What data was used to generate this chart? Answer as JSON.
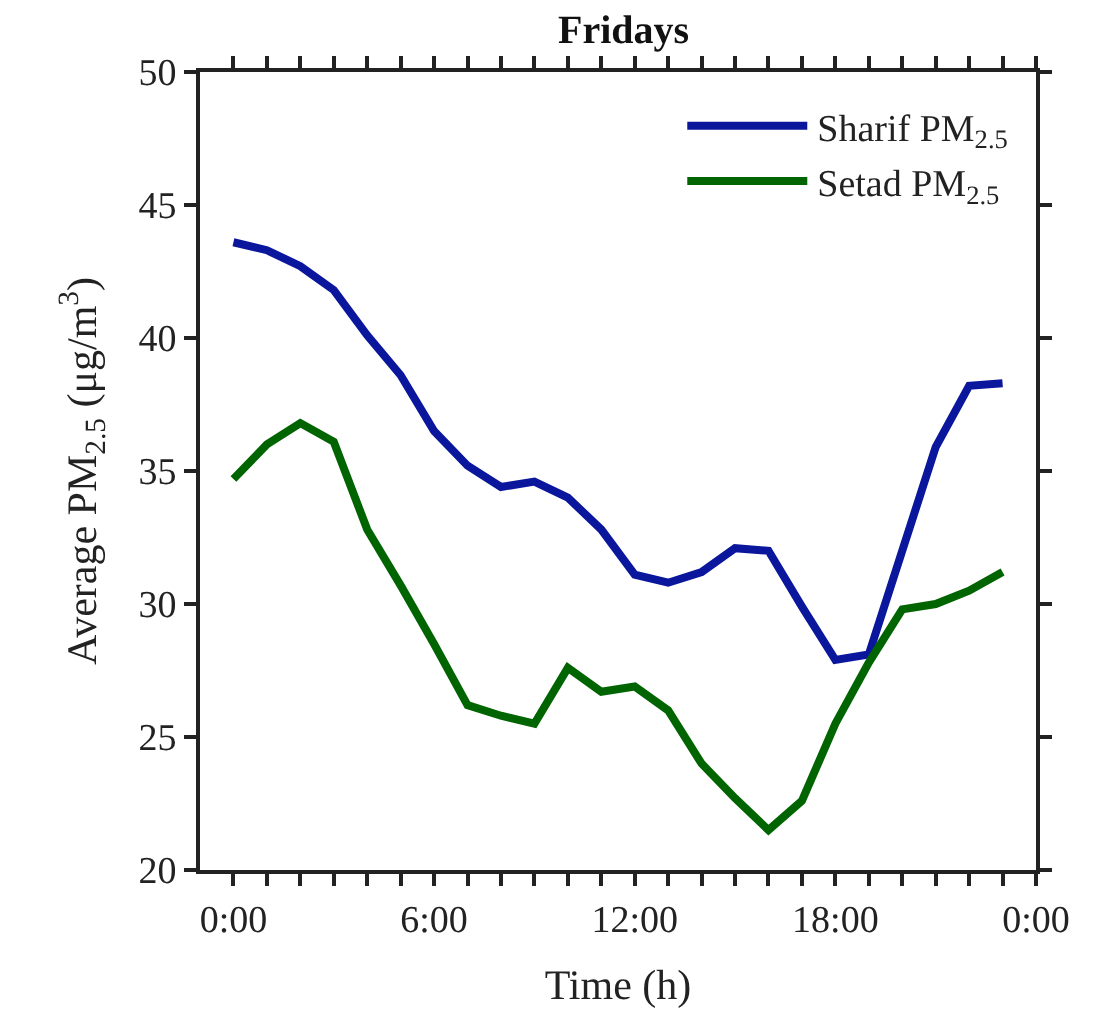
{
  "chart_data": {
    "type": "line",
    "title": "Fridays",
    "xlabel": "Time (h)",
    "ylabel": "Average PM$_{2.5}$ (μg/m$^{3}$)",
    "x": [
      0,
      1,
      2,
      3,
      4,
      5,
      6,
      7,
      8,
      9,
      10,
      11,
      12,
      13,
      14,
      15,
      16,
      17,
      18,
      19,
      20,
      21,
      22,
      23
    ],
    "series": [
      {
        "name": "Sharif PM$_{2.5}$",
        "color": "#0a169c",
        "values": [
          43.6,
          43.3,
          42.7,
          41.8,
          40.1,
          38.6,
          36.5,
          35.2,
          34.4,
          34.6,
          34.0,
          32.8,
          31.1,
          30.8,
          31.2,
          32.1,
          32.0,
          29.9,
          27.9,
          28.1,
          32.0,
          35.9,
          38.2,
          38.3
        ]
      },
      {
        "name": "Setad PM$_{2.5}$",
        "color": "#006400",
        "values": [
          34.7,
          36.0,
          36.8,
          36.1,
          32.8,
          30.7,
          28.5,
          26.2,
          25.8,
          25.5,
          27.6,
          26.7,
          26.9,
          26.0,
          24.0,
          22.7,
          21.5,
          22.6,
          25.5,
          27.8,
          29.8,
          30.0,
          30.5,
          31.2
        ]
      }
    ],
    "xlim": [
      -1,
      24
    ],
    "xticks": [
      {
        "value": 0,
        "label": "0:00"
      },
      {
        "value": 1,
        "label": null
      },
      {
        "value": 2,
        "label": null
      },
      {
        "value": 3,
        "label": null
      },
      {
        "value": 4,
        "label": null
      },
      {
        "value": 5,
        "label": null
      },
      {
        "value": 6,
        "label": "6:00"
      },
      {
        "value": 7,
        "label": null
      },
      {
        "value": 8,
        "label": null
      },
      {
        "value": 9,
        "label": null
      },
      {
        "value": 10,
        "label": null
      },
      {
        "value": 11,
        "label": null
      },
      {
        "value": 12,
        "label": "12:00"
      },
      {
        "value": 13,
        "label": null
      },
      {
        "value": 14,
        "label": null
      },
      {
        "value": 15,
        "label": null
      },
      {
        "value": 16,
        "label": null
      },
      {
        "value": 17,
        "label": null
      },
      {
        "value": 18,
        "label": "18:00"
      },
      {
        "value": 19,
        "label": null
      },
      {
        "value": 20,
        "label": null
      },
      {
        "value": 21,
        "label": null
      },
      {
        "value": 22,
        "label": null
      },
      {
        "value": 23,
        "label": null
      },
      {
        "value": 24,
        "label": "0:00"
      }
    ],
    "ylim": [
      20,
      50
    ],
    "yticks": [
      20,
      25,
      30,
      35,
      40,
      45,
      50
    ],
    "legend": "top right",
    "marker": "none",
    "line_style": "solid"
  }
}
